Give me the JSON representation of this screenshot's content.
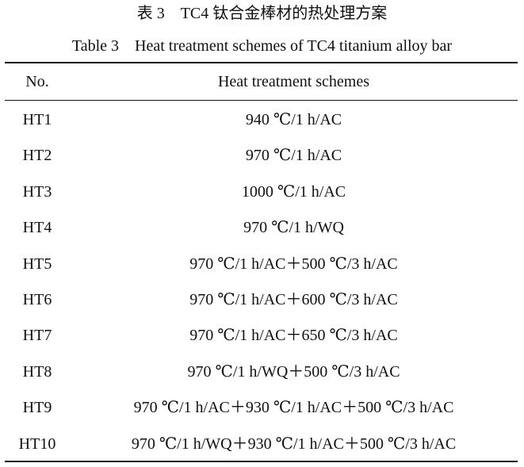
{
  "caption": {
    "title_cn": "表 3　TC4 钛合金棒材的热处理方案",
    "title_en": "Table 3　Heat treatment schemes of TC4 titanium alloy bar"
  },
  "table": {
    "headers": [
      "No.",
      "Heat treatment schemes"
    ],
    "rows": [
      [
        "HT1",
        "940 ℃/1 h/AC"
      ],
      [
        "HT2",
        "970 ℃/1 h/AC"
      ],
      [
        "HT3",
        "1000 ℃/1 h/AC"
      ],
      [
        "HT4",
        "970 ℃/1 h/WQ"
      ],
      [
        "HT5",
        "970 ℃/1 h/AC＋500 ℃/3 h/AC"
      ],
      [
        "HT6",
        "970 ℃/1 h/AC＋600 ℃/3 h/AC"
      ],
      [
        "HT7",
        "970 ℃/1 h/AC＋650 ℃/3 h/AC"
      ],
      [
        "HT8",
        "970 ℃/1 h/WQ＋500 ℃/3 h/AC"
      ],
      [
        "HT9",
        "970 ℃/1 h/AC＋930 ℃/1 h/AC＋500 ℃/3 h/AC"
      ],
      [
        "HT10",
        "970 ℃/1 h/WQ＋930 ℃/1 h/AC＋500 ℃/3 h/AC"
      ]
    ]
  }
}
